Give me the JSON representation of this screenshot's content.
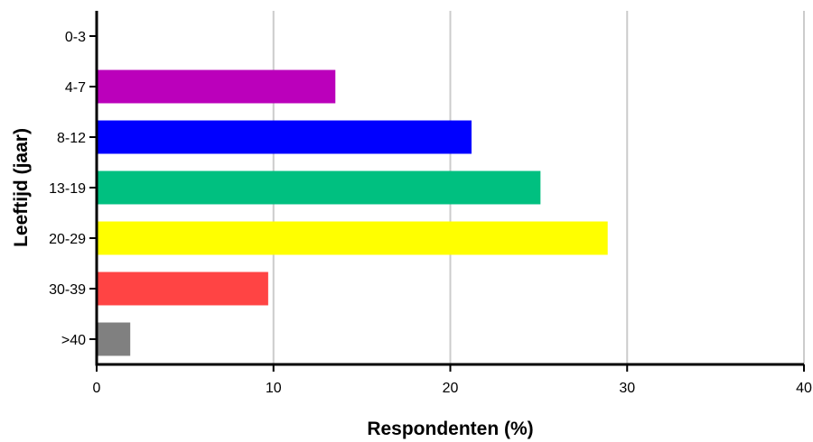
{
  "chart_data": {
    "type": "bar",
    "orientation": "horizontal",
    "categories": [
      "0-3",
      "4-7",
      "8-12",
      "13-19",
      "20-29",
      "30-39",
      ">40"
    ],
    "values": [
      0,
      13.5,
      21.2,
      25.1,
      28.9,
      9.7,
      1.9
    ],
    "colors": [
      "#ffffff",
      "#bb00bb",
      "#0000ff",
      "#00c080",
      "#ffff00",
      "#ff4444",
      "#808080"
    ],
    "xlabel": "Respondenten (%)",
    "ylabel": "Leeftijd (jaar)",
    "xlim": [
      0,
      40
    ],
    "xticks": [
      0,
      10,
      20,
      30,
      40
    ],
    "grid": "vertical"
  }
}
